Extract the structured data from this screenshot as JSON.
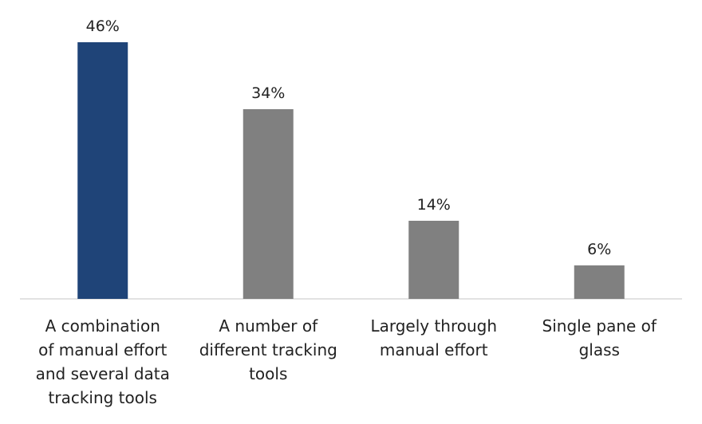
{
  "chart_data": {
    "type": "bar",
    "categories": [
      [
        "A combination",
        "of manual effort",
        "and several data",
        "tracking tools"
      ],
      [
        "A number of",
        "different tracking",
        "tools"
      ],
      [
        "Largely through",
        "manual effort"
      ],
      [
        "Single pane of",
        "glass"
      ]
    ],
    "values": [
      46,
      34,
      14,
      6
    ],
    "value_labels": [
      "46%",
      "34%",
      "14%",
      "6%"
    ],
    "bar_colors": [
      "#1f4478",
      "#808080",
      "#808080",
      "#808080"
    ],
    "axis_color": "#d9d9d9",
    "ylim": [
      0,
      46
    ],
    "title": "",
    "xlabel": "",
    "ylabel": "",
    "grid": false,
    "legend": "none"
  }
}
